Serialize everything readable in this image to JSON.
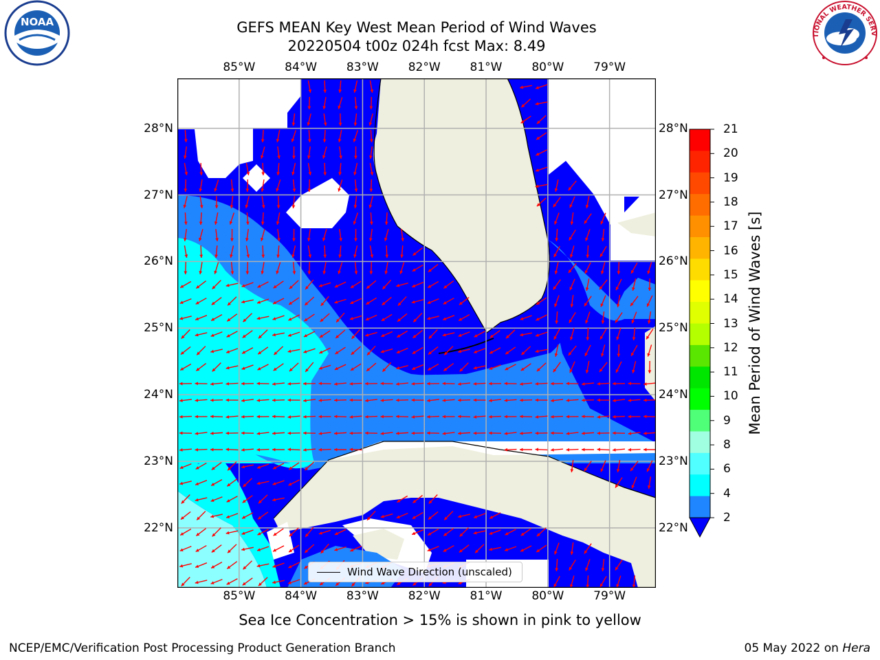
{
  "title": {
    "line1": "GEFS MEAN Key West Mean Period of Wind Waves",
    "line2": "20220504 t00z 024h fcst   Max: 8.49"
  },
  "map": {
    "lon_ticks": [
      "85°W",
      "84°W",
      "83°W",
      "82°W",
      "81°W",
      "80°W",
      "79°W"
    ],
    "lat_ticks": [
      "28°N",
      "27°N",
      "26°N",
      "25°N",
      "24°N",
      "23°N",
      "22°N"
    ],
    "extent": {
      "lon": [
        -86.0,
        -78.25
      ],
      "lat": [
        21.1,
        28.75
      ]
    },
    "colors": {
      "land": "#efefdf",
      "no_data": "#ffffff",
      "band_2_4": "#0000ff",
      "band_4_6": "#1f86ff",
      "band_6_8": "#00ffff",
      "band_8_9": "#8cffff",
      "arrow": "#ff0000",
      "grid": "#b0b0b0",
      "coast": "#000000"
    }
  },
  "legend": {
    "label": "Wind Wave Direction (unscaled)"
  },
  "colorbar": {
    "title": "Mean Period of Wind Waves [s]",
    "ticks": [
      "21",
      "20",
      "19",
      "18",
      "17",
      "16",
      "15",
      "14",
      "13",
      "12",
      "11",
      "10",
      "9",
      "8",
      "6",
      "4",
      "2"
    ],
    "colors": [
      "#ff0000",
      "#ff2400",
      "#ff4800",
      "#ff6c00",
      "#ff9000",
      "#ffb400",
      "#ffdc00",
      "#ffff00",
      "#e0ff00",
      "#b4ff00",
      "#5ae600",
      "#00e600",
      "#00ff00",
      "#50ff78",
      "#a0ffe0",
      "#50ffff",
      "#00ffff",
      "#1f86ff"
    ],
    "extend_color": "#0000ff"
  },
  "logos": {
    "left": "NOAA",
    "right": "NATIONAL WEATHER SERVICE"
  },
  "footer": {
    "note": "Sea Ice Concentration > 15% is shown in pink to yellow",
    "left": "NCEP/EMC/Verification Post Processing Product Generation Branch",
    "right_date": "05 May 2022 on",
    "right_machine": "Hera"
  }
}
